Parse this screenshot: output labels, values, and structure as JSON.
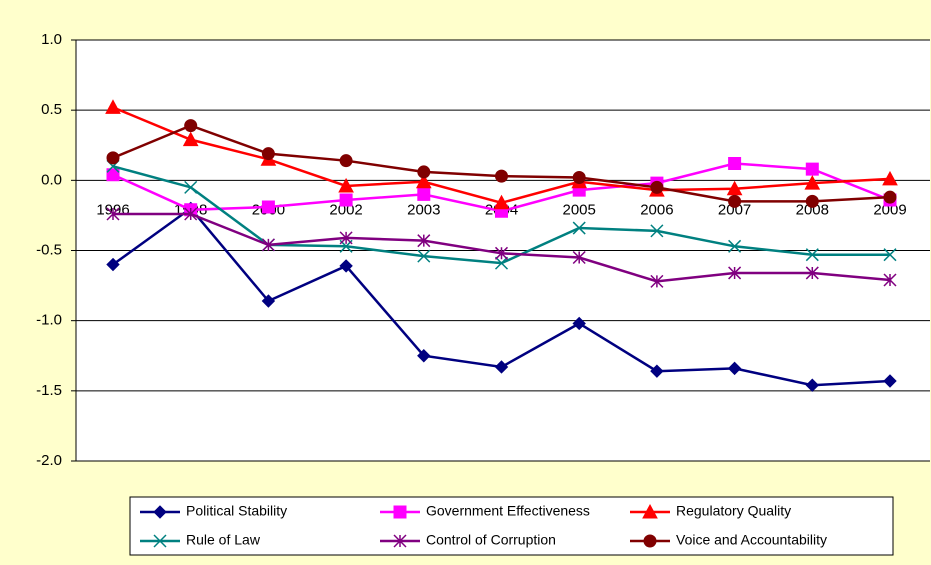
{
  "chart_data": {
    "type": "line",
    "categories": [
      "1996",
      "1998",
      "2000",
      "2002",
      "2003",
      "2004",
      "2005",
      "2006",
      "2007",
      "2008",
      "2009"
    ],
    "series": [
      {
        "name": "Political Stability",
        "color": "#000080",
        "marker": "diamond",
        "values": [
          -0.6,
          -0.2,
          -0.86,
          -0.61,
          -1.25,
          -1.33,
          -1.02,
          -1.36,
          -1.34,
          -1.46,
          -1.43
        ]
      },
      {
        "name": "Government Effectiveness",
        "color": "#ff00ff",
        "marker": "square",
        "values": [
          0.04,
          -0.21,
          -0.19,
          -0.14,
          -0.1,
          -0.22,
          -0.07,
          -0.02,
          0.12,
          0.08,
          -0.14
        ]
      },
      {
        "name": "Regulatory Quality",
        "color": "#ff0000",
        "marker": "triangle",
        "values": [
          0.52,
          0.29,
          0.15,
          -0.04,
          -0.01,
          -0.16,
          -0.01,
          -0.07,
          -0.06,
          -0.02,
          0.01
        ]
      },
      {
        "name": "Rule of Law",
        "color": "#008080",
        "marker": "x",
        "values": [
          0.1,
          -0.05,
          -0.46,
          -0.47,
          -0.54,
          -0.59,
          -0.34,
          -0.36,
          -0.47,
          -0.53,
          -0.53
        ]
      },
      {
        "name": "Control of Corruption",
        "color": "#800080",
        "marker": "star",
        "values": [
          -0.24,
          -0.24,
          -0.46,
          -0.41,
          -0.43,
          -0.52,
          -0.55,
          -0.72,
          -0.66,
          -0.66,
          -0.71
        ]
      },
      {
        "name": "Voice and Accountability",
        "color": "#800000",
        "marker": "circle",
        "values": [
          0.16,
          0.39,
          0.19,
          0.14,
          0.06,
          0.03,
          0.02,
          -0.05,
          -0.15,
          -0.15,
          -0.12
        ]
      }
    ],
    "ylim": [
      -2,
      1
    ],
    "yticks": [
      {
        "value": -2,
        "label": "-2.0"
      },
      -1.5,
      {
        "value": -1,
        "label": "-1.0"
      },
      -0.5,
      {
        "value": 0,
        "label": "0.0"
      },
      0.5,
      {
        "value": 1,
        "label": "1.0"
      }
    ],
    "grid": true,
    "legend": "bottom"
  }
}
